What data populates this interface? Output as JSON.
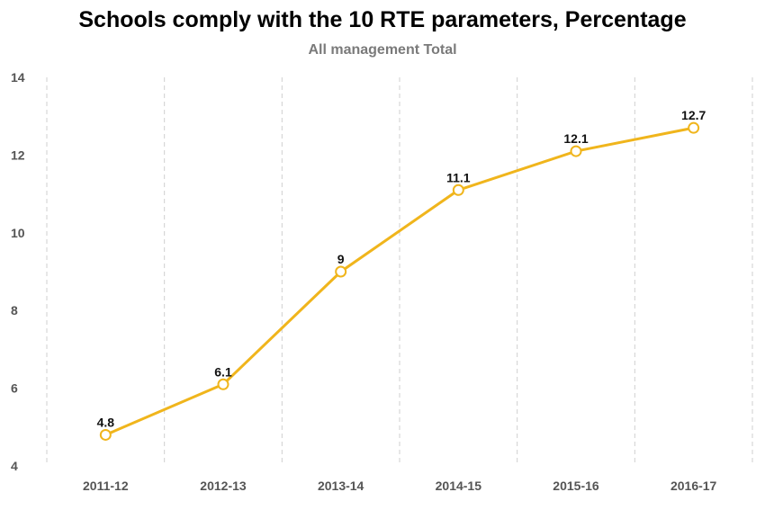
{
  "chart_data": {
    "type": "line",
    "title": "Schools comply with the 10 RTE parameters, Percentage",
    "subtitle": "All management Total",
    "categories": [
      "2011-12",
      "2012-13",
      "2013-14",
      "2014-15",
      "2015-16",
      "2016-17"
    ],
    "values": [
      4.8,
      6.1,
      9,
      11.1,
      12.1,
      12.7
    ],
    "data_labels": [
      "4.8",
      "6.1",
      "9",
      "11.1",
      "12.1",
      "12.7"
    ],
    "ylim": [
      4,
      14
    ],
    "yticks": [
      "4",
      "6",
      "8",
      "10",
      "12",
      "14"
    ],
    "grid": "vertical dashed",
    "legend": "none",
    "line_color": "#f0b51c",
    "marker_fill": "#ffffff"
  }
}
